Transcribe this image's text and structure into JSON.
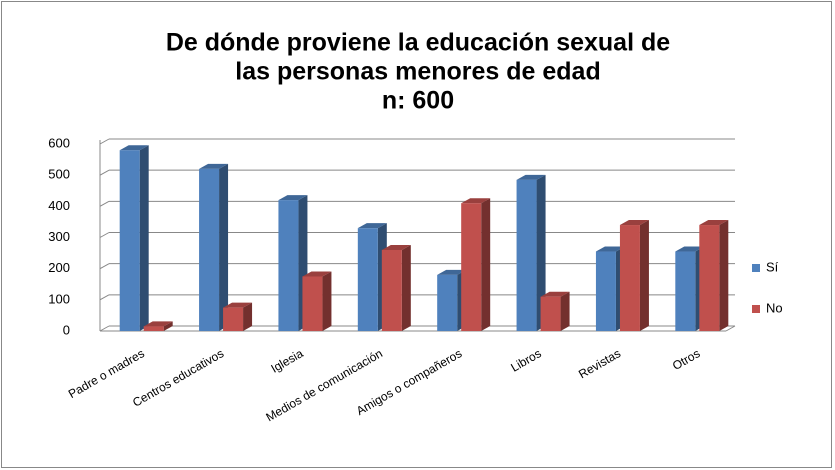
{
  "chart_data": {
    "type": "bar",
    "title": [
      "De dónde proviene la educación sexual de",
      "las personas menores de edad"
    ],
    "subtitle": "n: 600",
    "categories": [
      "Padre o madres",
      "Centros educativos",
      "Iglesia",
      "Medios de comunicación",
      "Amigos o compañeros",
      "Libros",
      "Revistas",
      "Otros"
    ],
    "series": [
      {
        "name": "Sí",
        "color": "#4f81bd",
        "values": [
          580,
          520,
          420,
          330,
          180,
          485,
          255,
          255
        ]
      },
      {
        "name": "No",
        "color": "#c0504d",
        "values": [
          15,
          75,
          175,
          260,
          410,
          110,
          340,
          340
        ]
      }
    ],
    "ylim": [
      0,
      600
    ],
    "yticks": [
      0,
      100,
      200,
      300,
      400,
      500,
      600
    ],
    "grid": true,
    "legend": "right"
  }
}
